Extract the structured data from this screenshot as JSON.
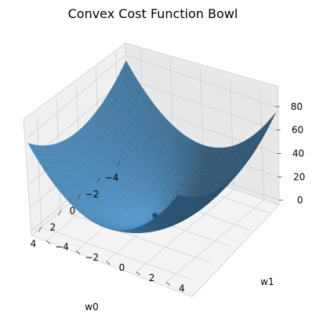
{
  "chart_data": {
    "type": "surface3d",
    "title": "Convex Cost Function Bowl",
    "xlabel": "w0",
    "ylabel": "w1",
    "zlabel": "",
    "function": "w0^2 + 2*w1^2",
    "xlim": [
      -5,
      5
    ],
    "ylim": [
      -5,
      5
    ],
    "zlim": [
      -4,
      90
    ],
    "x_ticks": [
      -4,
      -2,
      0,
      2,
      4
    ],
    "x_tick_labels": [
      "−4",
      "−2",
      "0",
      "2",
      "4"
    ],
    "y_ticks": [
      -4,
      -2,
      0,
      2,
      4
    ],
    "y_tick_labels": [
      "−4",
      "−2",
      "0",
      "2",
      "4"
    ],
    "z_ticks": [
      0,
      20,
      40,
      60,
      80
    ],
    "z_tick_labels": [
      "0",
      "20",
      "40",
      "60",
      "80"
    ],
    "grid": true,
    "surface_color": "#4c93c9",
    "minimum_point": {
      "x": 0,
      "y": 0,
      "z": 0,
      "color": "#1f4f73"
    }
  }
}
